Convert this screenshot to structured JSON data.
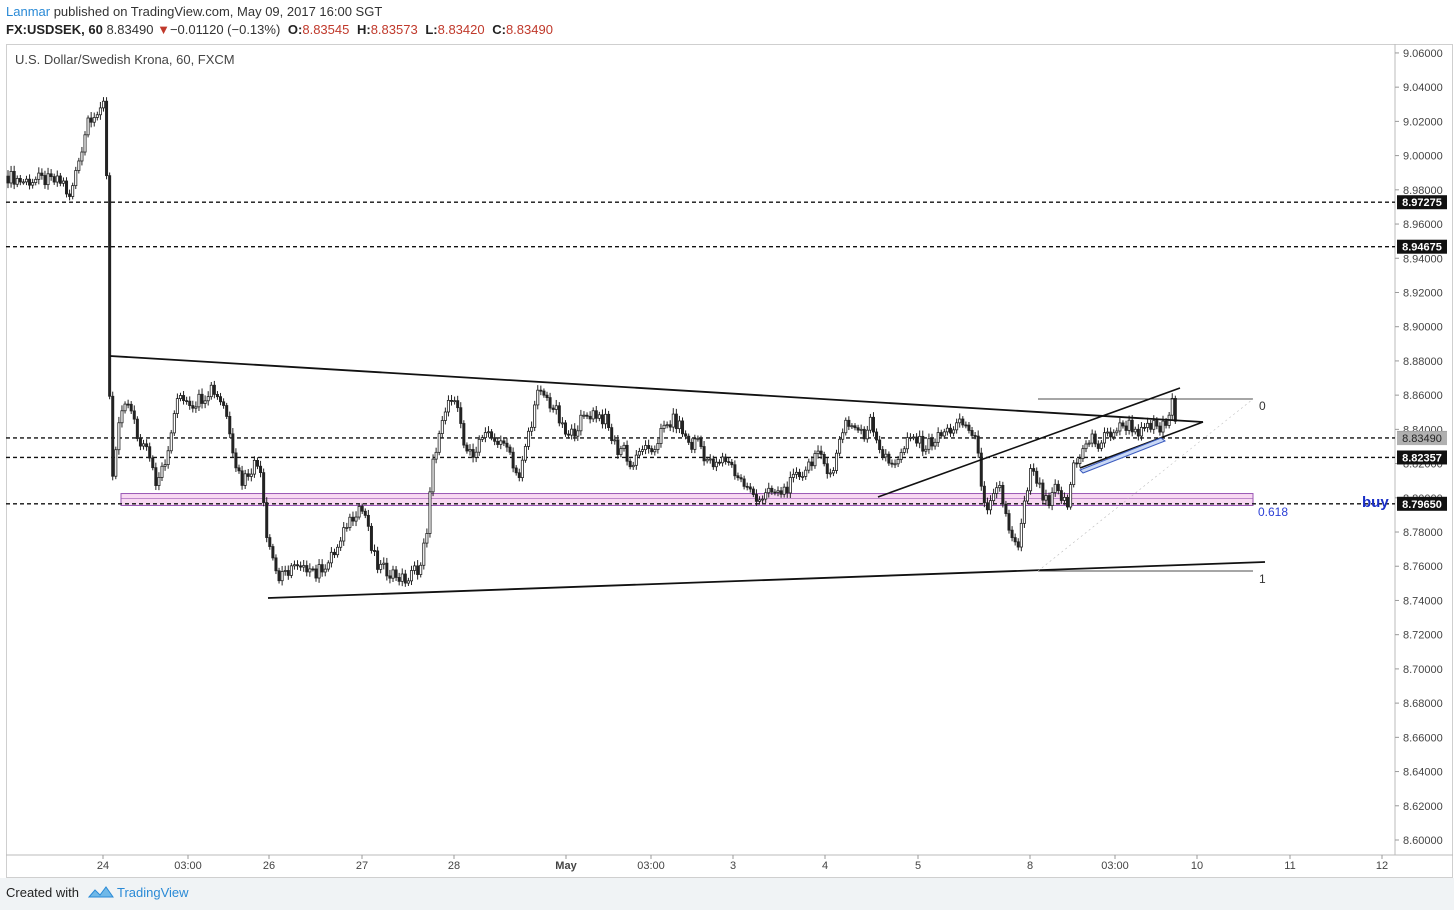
{
  "header": {
    "author": "Lanmar",
    "published": "published on TradingView.com, May 09, 2017 16:00 SGT",
    "symbol": "FX:USDSEK, 60",
    "last": "8.83490",
    "change_arrow": "▼",
    "change": "−0.01120 (−0.13%)",
    "o_label": "O:",
    "o_value": "8.83545",
    "h_label": "H:",
    "h_value": "8.83573",
    "l_label": "L:",
    "l_value": "8.83420",
    "c_label": "C:",
    "c_value": "8.83490"
  },
  "footer": {
    "created_with": "Created with",
    "brand": "TradingView",
    "brand_icon": "tradingview-logo-icon"
  },
  "colors": {
    "accent": "#2a8ad6",
    "down": "#c0392b",
    "zone_fill": "#f8d9f2",
    "zone_border": "#9b59b6",
    "fib_text": "#2b3fd6",
    "buy_text": "#1a2fc7"
  },
  "chart_data": {
    "type": "candlestick",
    "title": "U.S. Dollar/Swedish Krona, 60, FXCM",
    "ylim": [
      8.59,
      9.07
    ],
    "y_ticks": [
      "9.06000",
      "9.04000",
      "9.02000",
      "9.00000",
      "8.98000",
      "8.96000",
      "8.94000",
      "8.92000",
      "8.90000",
      "8.88000",
      "8.86000",
      "8.84000",
      "8.82000",
      "8.80000",
      "8.78000",
      "8.76000",
      "8.74000",
      "8.72000",
      "8.70000",
      "8.68000",
      "8.66000",
      "8.64000",
      "8.62000",
      "8.60000"
    ],
    "x_ticks": [
      "24",
      "03:00",
      "26",
      "27",
      "28",
      "May",
      "03:00",
      "3",
      "4",
      "5",
      "8",
      "03:00",
      "10",
      "11",
      "12"
    ],
    "grid": false,
    "horizontal_levels": [
      {
        "value": 8.97275,
        "label": "8.97275"
      },
      {
        "value": 8.94675,
        "label": "8.94675"
      },
      {
        "value": 8.83497,
        "label": "8.83497"
      },
      {
        "value": 8.82357,
        "label": "8.82357"
      },
      {
        "value": 8.7965,
        "label": "8.79650"
      }
    ],
    "last_price": {
      "value": 8.8349,
      "label": "8.83490"
    },
    "support_zone": {
      "from": 8.7955,
      "to": 8.8025
    },
    "fib_labels": [
      "0",
      "0.618",
      "1"
    ],
    "annotation": "buy",
    "price_path": [
      [
        0,
        8.988
      ],
      [
        5,
        8.985
      ],
      [
        10,
        8.986
      ],
      [
        15,
        8.985
      ],
      [
        18,
        8.984
      ],
      [
        20,
        8.974
      ],
      [
        22,
        8.99
      ],
      [
        24,
        9.005
      ],
      [
        26,
        9.022
      ],
      [
        28,
        9.025
      ],
      [
        30,
        9.024
      ],
      [
        31,
        9.03
      ],
      [
        32,
        8.99
      ],
      [
        33,
        8.86
      ],
      [
        34,
        8.815
      ],
      [
        36,
        8.84
      ],
      [
        38,
        8.855
      ],
      [
        40,
        8.85
      ],
      [
        42,
        8.835
      ],
      [
        44,
        8.83
      ],
      [
        46,
        8.825
      ],
      [
        48,
        8.81
      ],
      [
        50,
        8.82
      ],
      [
        52,
        8.825
      ],
      [
        54,
        8.85
      ],
      [
        56,
        8.86
      ],
      [
        58,
        8.858
      ],
      [
        60,
        8.855
      ],
      [
        62,
        8.858
      ],
      [
        64,
        8.86
      ],
      [
        66,
        8.865
      ],
      [
        68,
        8.86
      ],
      [
        70,
        8.855
      ],
      [
        72,
        8.84
      ],
      [
        74,
        8.82
      ],
      [
        76,
        8.81
      ],
      [
        78,
        8.815
      ],
      [
        80,
        8.82
      ],
      [
        82,
        8.818
      ],
      [
        84,
        8.78
      ],
      [
        86,
        8.765
      ],
      [
        88,
        8.752
      ],
      [
        90,
        8.755
      ],
      [
        92,
        8.76
      ],
      [
        94,
        8.758
      ],
      [
        96,
        8.757
      ],
      [
        98,
        8.762
      ],
      [
        100,
        8.755
      ],
      [
        102,
        8.76
      ],
      [
        104,
        8.762
      ],
      [
        106,
        8.768
      ],
      [
        108,
        8.773
      ],
      [
        110,
        8.785
      ],
      [
        112,
        8.79
      ],
      [
        114,
        8.795
      ],
      [
        116,
        8.79
      ],
      [
        118,
        8.77
      ],
      [
        120,
        8.76
      ],
      [
        122,
        8.758
      ],
      [
        124,
        8.757
      ],
      [
        126,
        8.755
      ],
      [
        128,
        8.752
      ],
      [
        130,
        8.752
      ],
      [
        132,
        8.758
      ],
      [
        134,
        8.76
      ],
      [
        136,
        8.782
      ],
      [
        138,
        8.82
      ],
      [
        140,
        8.838
      ],
      [
        142,
        8.848
      ],
      [
        144,
        8.86
      ],
      [
        146,
        8.85
      ],
      [
        148,
        8.83
      ],
      [
        150,
        8.825
      ],
      [
        152,
        8.83
      ],
      [
        154,
        8.835
      ],
      [
        156,
        8.835
      ],
      [
        158,
        8.835
      ],
      [
        160,
        8.83
      ],
      [
        162,
        8.833
      ],
      [
        164,
        8.82
      ],
      [
        166,
        8.81
      ],
      [
        168,
        8.83
      ],
      [
        170,
        8.845
      ],
      [
        172,
        8.86
      ],
      [
        174,
        8.86
      ],
      [
        176,
        8.855
      ],
      [
        178,
        8.85
      ],
      [
        180,
        8.84
      ],
      [
        182,
        8.835
      ],
      [
        184,
        8.84
      ],
      [
        186,
        8.845
      ],
      [
        188,
        8.848
      ],
      [
        190,
        8.85
      ],
      [
        192,
        8.848
      ],
      [
        194,
        8.845
      ],
      [
        196,
        8.835
      ],
      [
        198,
        8.828
      ],
      [
        200,
        8.83
      ],
      [
        202,
        8.818
      ],
      [
        204,
        8.822
      ],
      [
        206,
        8.83
      ],
      [
        208,
        8.825
      ],
      [
        210,
        8.83
      ],
      [
        212,
        8.838
      ],
      [
        214,
        8.842
      ],
      [
        216,
        8.845
      ],
      [
        218,
        8.842
      ],
      [
        220,
        8.835
      ],
      [
        222,
        8.83
      ],
      [
        224,
        8.835
      ],
      [
        226,
        8.825
      ],
      [
        228,
        8.82
      ],
      [
        230,
        8.818
      ],
      [
        232,
        8.822
      ],
      [
        234,
        8.822
      ],
      [
        236,
        8.815
      ],
      [
        238,
        8.81
      ],
      [
        240,
        8.805
      ],
      [
        242,
        8.802
      ],
      [
        244,
        8.8
      ],
      [
        246,
        8.801
      ],
      [
        248,
        8.803
      ],
      [
        250,
        8.802
      ],
      [
        252,
        8.805
      ],
      [
        254,
        8.808
      ],
      [
        256,
        8.812
      ],
      [
        258,
        8.815
      ],
      [
        260,
        8.82
      ],
      [
        262,
        8.825
      ],
      [
        264,
        8.822
      ],
      [
        266,
        8.818
      ],
      [
        268,
        8.815
      ],
      [
        270,
        8.835
      ],
      [
        272,
        8.845
      ],
      [
        274,
        8.842
      ],
      [
        276,
        8.84
      ],
      [
        278,
        8.835
      ],
      [
        280,
        8.848
      ],
      [
        282,
        8.835
      ],
      [
        284,
        8.825
      ],
      [
        286,
        8.82
      ],
      [
        288,
        8.822
      ],
      [
        290,
        8.825
      ],
      [
        292,
        8.832
      ],
      [
        294,
        8.835
      ],
      [
        296,
        8.832
      ],
      [
        298,
        8.83
      ],
      [
        300,
        8.833
      ],
      [
        302,
        8.835
      ],
      [
        304,
        8.838
      ],
      [
        306,
        8.84
      ],
      [
        308,
        8.842
      ],
      [
        310,
        8.843
      ],
      [
        312,
        8.84
      ],
      [
        314,
        8.835
      ],
      [
        316,
        8.81
      ],
      [
        318,
        8.79
      ],
      [
        320,
        8.8
      ],
      [
        322,
        8.805
      ],
      [
        324,
        8.79
      ],
      [
        326,
        8.775
      ],
      [
        328,
        8.77
      ],
      [
        330,
        8.795
      ],
      [
        332,
        8.815
      ],
      [
        334,
        8.81
      ],
      [
        336,
        8.8
      ],
      [
        338,
        8.795
      ],
      [
        340,
        8.805
      ],
      [
        342,
        8.8
      ],
      [
        344,
        8.795
      ],
      [
        346,
        8.82
      ],
      [
        348,
        8.825
      ],
      [
        350,
        8.83
      ],
      [
        352,
        8.835
      ],
      [
        354,
        8.83
      ],
      [
        356,
        8.835
      ],
      [
        358,
        8.838
      ],
      [
        360,
        8.84
      ],
      [
        362,
        8.842
      ],
      [
        364,
        8.843
      ],
      [
        366,
        8.84
      ],
      [
        368,
        8.838
      ],
      [
        370,
        8.84
      ],
      [
        372,
        8.842
      ],
      [
        374,
        8.84
      ],
      [
        376,
        8.843
      ],
      [
        378,
        8.855
      ],
      [
        380,
        8.8349
      ]
    ]
  }
}
